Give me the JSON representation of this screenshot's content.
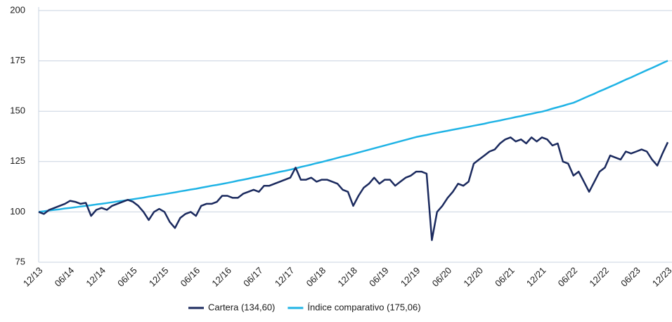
{
  "chart_data": {
    "type": "line",
    "x": [
      "12/13",
      "01/14",
      "02/14",
      "03/14",
      "04/14",
      "05/14",
      "06/14",
      "07/14",
      "08/14",
      "09/14",
      "10/14",
      "11/14",
      "12/14",
      "01/15",
      "02/15",
      "03/15",
      "04/15",
      "05/15",
      "06/15",
      "07/15",
      "08/15",
      "09/15",
      "10/15",
      "11/15",
      "12/15",
      "01/16",
      "02/16",
      "03/16",
      "04/16",
      "05/16",
      "06/16",
      "07/16",
      "08/16",
      "09/16",
      "10/16",
      "11/16",
      "12/16",
      "01/17",
      "02/17",
      "03/17",
      "04/17",
      "05/17",
      "06/17",
      "07/17",
      "08/17",
      "09/17",
      "10/17",
      "11/17",
      "12/17",
      "01/18",
      "02/18",
      "03/18",
      "04/18",
      "05/18",
      "06/18",
      "07/18",
      "08/18",
      "09/18",
      "10/18",
      "11/18",
      "12/18",
      "01/19",
      "02/19",
      "03/19",
      "04/19",
      "05/19",
      "06/19",
      "07/19",
      "08/19",
      "09/19",
      "10/19",
      "11/19",
      "12/19",
      "01/20",
      "02/20",
      "03/20",
      "04/20",
      "05/20",
      "06/20",
      "07/20",
      "08/20",
      "09/20",
      "10/20",
      "11/20",
      "12/20",
      "01/21",
      "02/21",
      "03/21",
      "04/21",
      "05/21",
      "06/21",
      "07/21",
      "08/21",
      "09/21",
      "10/21",
      "11/21",
      "12/21",
      "01/22",
      "02/22",
      "03/22",
      "04/22",
      "05/22",
      "06/22",
      "07/22",
      "08/22",
      "09/22",
      "10/22",
      "11/22",
      "12/22",
      "01/23",
      "02/23",
      "03/23",
      "04/23",
      "05/23",
      "06/23",
      "07/23",
      "08/23",
      "09/23",
      "10/23",
      "11/23",
      "12/23"
    ],
    "xticks": [
      "12/13",
      "06/14",
      "12/14",
      "06/15",
      "12/15",
      "06/16",
      "12/16",
      "06/17",
      "12/17",
      "06/18",
      "12/18",
      "06/19",
      "12/19",
      "06/20",
      "12/20",
      "06/21",
      "12/21",
      "06/22",
      "12/22",
      "06/23",
      "12/23"
    ],
    "series": [
      {
        "name": "Cartera (134,60)",
        "color": "#1b2a5e",
        "values": [
          100,
          99,
          101,
          102,
          103,
          104,
          105.5,
          105,
          104,
          104.5,
          98,
          101,
          102,
          101,
          103,
          104,
          105,
          106,
          105,
          103,
          100,
          96,
          100,
          101.5,
          100,
          95,
          92,
          97,
          99,
          100,
          98,
          103,
          104,
          104,
          105,
          108,
          108,
          107,
          107,
          109,
          110,
          111,
          110,
          113,
          113,
          114,
          115,
          116,
          117,
          122,
          116,
          116,
          117,
          115,
          116,
          116,
          115,
          114,
          111,
          110,
          103,
          108,
          112,
          114,
          117,
          114,
          116,
          116,
          113,
          115,
          117,
          118,
          120,
          120,
          119,
          86,
          100,
          103,
          107,
          110,
          114,
          113,
          115,
          124,
          126,
          128,
          130,
          131,
          134,
          136,
          137,
          135,
          136,
          134,
          137,
          135,
          137,
          136,
          133,
          134,
          125,
          124,
          118,
          120,
          115,
          110,
          115,
          120,
          122,
          128,
          127,
          126,
          130,
          129,
          130,
          131,
          130,
          126,
          123,
          129,
          134.6
        ]
      },
      {
        "name": "Índice comparativo (175,06)",
        "color": "#1fb3e5",
        "values": [
          100.0,
          100.3,
          100.7,
          101.0,
          101.3,
          101.7,
          102.0,
          102.3,
          102.7,
          103.0,
          103.3,
          103.7,
          104.0,
          104.4,
          104.8,
          105.2,
          105.5,
          105.9,
          106.3,
          106.7,
          107.1,
          107.6,
          108.0,
          108.4,
          108.8,
          109.3,
          109.7,
          110.2,
          110.6,
          111.1,
          111.5,
          112.0,
          112.5,
          113.0,
          113.4,
          113.9,
          114.4,
          114.9,
          115.5,
          116.0,
          116.5,
          117.1,
          117.6,
          118.2,
          118.7,
          119.3,
          119.9,
          120.4,
          121.0,
          121.6,
          122.3,
          122.9,
          123.5,
          124.2,
          124.8,
          125.5,
          126.1,
          126.8,
          127.5,
          128.1,
          128.8,
          129.5,
          130.2,
          130.9,
          131.6,
          132.3,
          133.0,
          133.7,
          134.4,
          135.1,
          135.8,
          136.5,
          137.2,
          137.7,
          138.2,
          138.8,
          139.3,
          139.8,
          140.3,
          140.8,
          141.3,
          141.8,
          142.3,
          142.8,
          143.3,
          143.8,
          144.4,
          144.9,
          145.4,
          146.0,
          146.5,
          147.1,
          147.6,
          148.2,
          148.7,
          149.3,
          149.8,
          150.5,
          151.3,
          152.0,
          152.7,
          153.5,
          154.2,
          155.3,
          156.5,
          157.6,
          158.7,
          159.9,
          161.0,
          162.2,
          163.3,
          164.5,
          165.7,
          166.8,
          168.0,
          169.2,
          170.4,
          171.5,
          172.7,
          173.9,
          175.06
        ]
      }
    ],
    "ylim": [
      75,
      200
    ],
    "yticks": [
      75,
      100,
      125,
      150,
      175,
      200
    ],
    "grid": true
  }
}
